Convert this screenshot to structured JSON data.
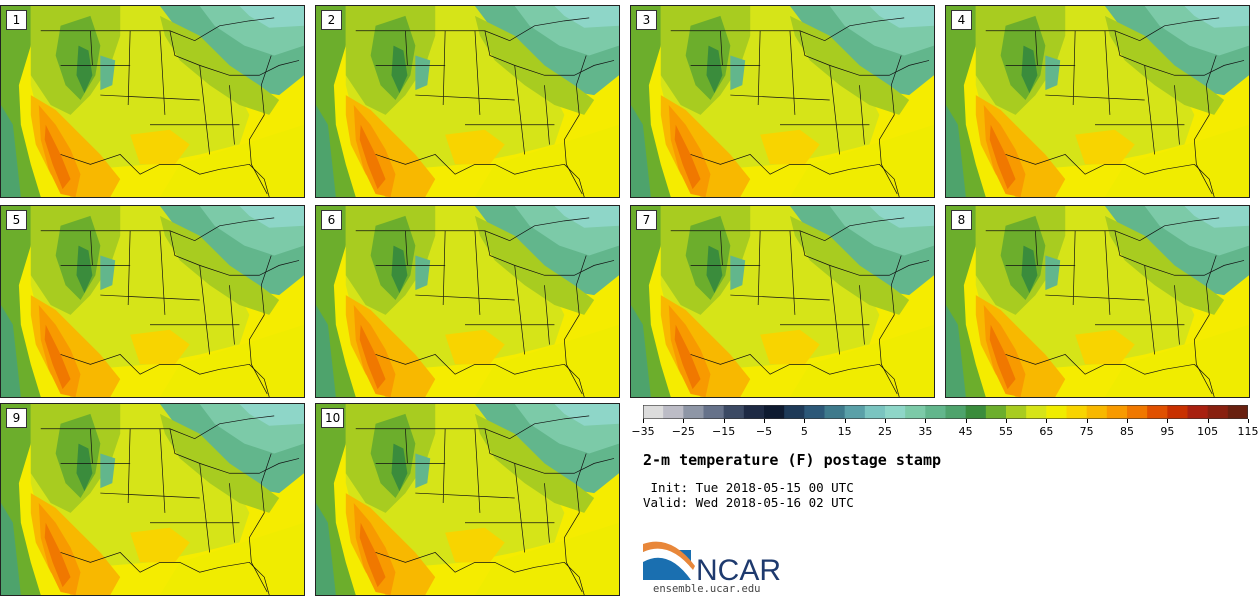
{
  "panels": [
    {
      "label": "1"
    },
    {
      "label": "2"
    },
    {
      "label": "3"
    },
    {
      "label": "4"
    },
    {
      "label": "5"
    },
    {
      "label": "6"
    },
    {
      "label": "7"
    },
    {
      "label": "8"
    },
    {
      "label": "9"
    },
    {
      "label": "10"
    }
  ],
  "colorbar": {
    "colors": [
      "#dcdcdc",
      "#bcbcc6",
      "#8e96a6",
      "#66728a",
      "#3c4a64",
      "#1e2a44",
      "#0e1a30",
      "#1e3a58",
      "#2c5878",
      "#3e7a8c",
      "#5aa0a8",
      "#7ac4c0",
      "#8ed6c8",
      "#7ccaa8",
      "#62b68c",
      "#4ea36c",
      "#3a8c3c",
      "#6cae2c",
      "#a8cc20",
      "#d6e418",
      "#f0ec00",
      "#f8d400",
      "#f8b800",
      "#f89a00",
      "#f07800",
      "#e05000",
      "#c83000",
      "#a82010",
      "#882010",
      "#682010"
    ],
    "ticks": [
      "−35",
      "−25",
      "−15",
      "−5",
      "5",
      "15",
      "25",
      "35",
      "45",
      "55",
      "65",
      "75",
      "85",
      "95",
      "105",
      "115"
    ]
  },
  "title": "2-m temperature (F) postage stamp",
  "init_line": " Init: Tue 2018-05-15 00 UTC",
  "valid_line": "Valid: Wed 2018-05-16 02 UTC",
  "logo": {
    "text": "NCAR"
  },
  "site": "ensemble.ucar.edu"
}
